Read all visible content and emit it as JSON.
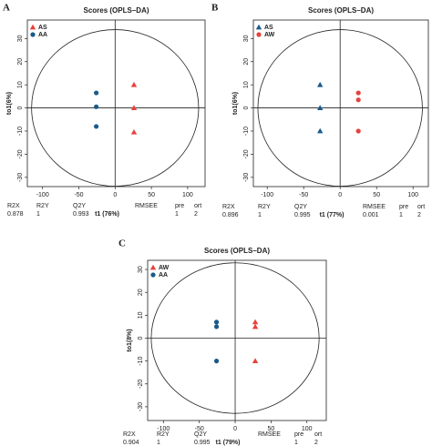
{
  "chart_data": [
    {
      "type": "scatter",
      "panel": "A",
      "title": "Scores (OPLS–DA)",
      "xlabel": "t1 (76%)",
      "ylabel": "to1(6%)",
      "xlim": [
        -121,
        124
      ],
      "ylim": [
        -34,
        38
      ],
      "xticks": [
        -100,
        -50,
        0,
        50,
        100
      ],
      "yticks": [
        -30,
        -20,
        -10,
        0,
        10,
        20,
        30
      ],
      "legend": "top-left",
      "series": [
        {
          "name": "AS",
          "color": "#e8413c",
          "marker": "triangle",
          "x": [
            26,
            26,
            26
          ],
          "values": [
            10,
            0,
            -10.5
          ]
        },
        {
          "name": "AA",
          "color": "#1a5b8a",
          "marker": "circle",
          "x": [
            -26,
            -26,
            -26
          ],
          "values": [
            6.5,
            0.5,
            -8
          ]
        }
      ],
      "stats": {
        "labels": [
          "R2X",
          "R2Y",
          "Q2Y",
          "RMSEE",
          "pre",
          "ort"
        ],
        "values": [
          0.878,
          1,
          0.993,
          null,
          1,
          2
        ]
      }
    },
    {
      "type": "scatter",
      "panel": "B",
      "title": "Scores (OPLS–DA)",
      "xlabel": "t1 (77%)",
      "ylabel": "to1(6%)",
      "xlim": [
        -119,
        121
      ],
      "ylim": [
        -34,
        38
      ],
      "xticks": [
        -100,
        -50,
        0,
        50,
        100
      ],
      "yticks": [
        -30,
        -20,
        -10,
        0,
        10,
        20,
        30
      ],
      "legend": "top-left",
      "series": [
        {
          "name": "AS",
          "color": "#1a5b8a",
          "marker": "triangle",
          "x": [
            -27.5,
            -27.5,
            -27.5
          ],
          "values": [
            10,
            0,
            -10
          ]
        },
        {
          "name": "AW",
          "color": "#e8413c",
          "marker": "circle",
          "x": [
            25,
            25,
            25
          ],
          "values": [
            6.5,
            3.5,
            -10
          ]
        }
      ],
      "stats": {
        "labels": [
          "R2X",
          "R2Y",
          "Q2Y",
          "RMSEE",
          "pre",
          "ort"
        ],
        "values": [
          0.896,
          1,
          0.995,
          0.001,
          1,
          2
        ]
      }
    },
    {
      "type": "scatter",
      "panel": "C",
      "title": "Scores (OPLS–DA)",
      "xlabel": "t1 (79%)",
      "ylabel": "to1(8%)",
      "xlim": [
        -122,
        127
      ],
      "ylim": [
        -36,
        34
      ],
      "xticks": [
        -100,
        -50,
        0,
        50,
        100
      ],
      "yticks": [
        -30,
        -20,
        -10,
        0,
        10,
        20,
        30
      ],
      "legend": "top-left",
      "series": [
        {
          "name": "AW",
          "color": "#e8413c",
          "marker": "triangle",
          "x": [
            28,
            28,
            28
          ],
          "values": [
            7,
            5,
            -10
          ]
        },
        {
          "name": "AA",
          "color": "#1a5b8a",
          "marker": "circle",
          "x": [
            -26,
            -26,
            -26
          ],
          "values": [
            7,
            5,
            -10
          ]
        }
      ],
      "stats": {
        "labels": [
          "R2X",
          "R2Y",
          "Q2Y",
          "RMSEE",
          "pre",
          "ort"
        ],
        "values": [
          0.904,
          1,
          0.995,
          null,
          1,
          2
        ]
      }
    }
  ]
}
